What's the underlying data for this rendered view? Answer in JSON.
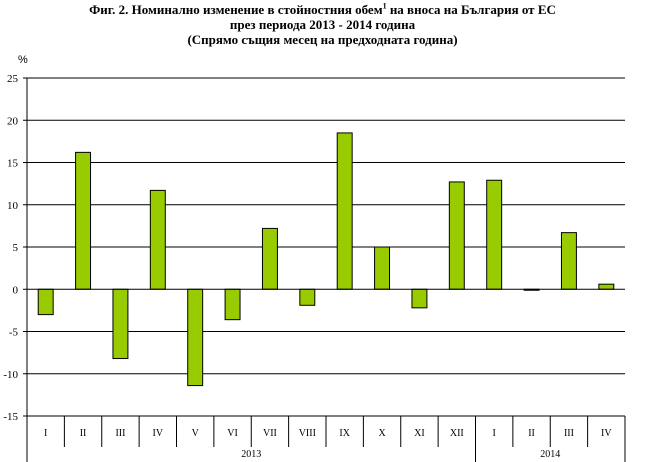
{
  "chart_data": {
    "type": "bar",
    "title": {
      "line1_before_sup": "Фиг. 2. Номинално изменение в стойностния обем",
      "line1_sup": "1",
      "line1_after_sup": " на вноса на България от ЕС",
      "line2": "през периода 2013 - 2014 година",
      "line3": "(Спрямо същия месец на предходната година)"
    },
    "ylabel": "%",
    "ylim": [
      -15,
      25
    ],
    "yticks": [
      25,
      20,
      15,
      10,
      5,
      0,
      -5,
      -10,
      -15
    ],
    "categories": [
      "I",
      "II",
      "III",
      "IV",
      "V",
      "VI",
      "VII",
      "VIII",
      "IX",
      "X",
      "XI",
      "XII",
      "I",
      "II",
      "III",
      "IV"
    ],
    "groups": [
      {
        "label": "2013",
        "count": 12
      },
      {
        "label": "2014",
        "count": 4
      }
    ],
    "series": [
      {
        "values": [
          -3.0,
          16.2,
          -8.2,
          11.7,
          -11.4,
          -3.6,
          7.2,
          -1.9,
          18.5,
          5.0,
          -2.2,
          12.7,
          12.9,
          -0.1,
          6.7,
          0.6
        ],
        "color": "#99cc00"
      }
    ],
    "grid": true,
    "legend": "none"
  }
}
